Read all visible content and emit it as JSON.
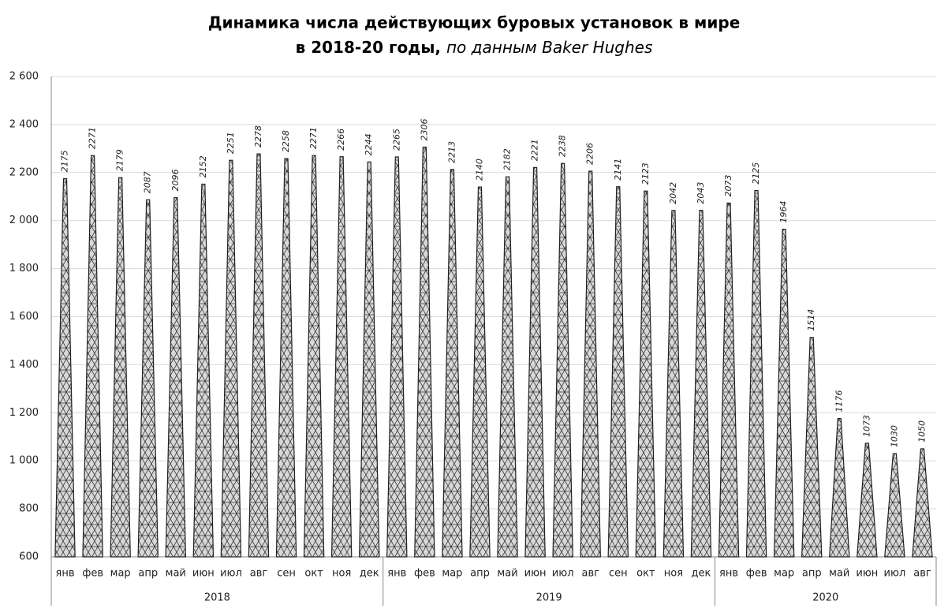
{
  "chart_data": {
    "type": "bar",
    "title": "Динамика числа действующих буровых установок в мире",
    "subtitle": "в 2018-20 годы,",
    "source": "по данным Baker Hughes",
    "ylim": [
      600,
      2600
    ],
    "yticks": [
      {
        "value": 600,
        "label": "600"
      },
      {
        "value": 800,
        "label": "800"
      },
      {
        "value": 1000,
        "label": "1 000"
      },
      {
        "value": 1200,
        "label": "1 200"
      },
      {
        "value": 1400,
        "label": "1 400"
      },
      {
        "value": 1600,
        "label": "1 600"
      },
      {
        "value": 1800,
        "label": "1 800"
      },
      {
        "value": 2000,
        "label": "2 000"
      },
      {
        "value": 2200,
        "label": "2 200"
      },
      {
        "value": 2400,
        "label": "2 400"
      },
      {
        "value": 2600,
        "label": "2 600"
      }
    ],
    "grid": true,
    "color": "#b0b0b0",
    "groups": [
      {
        "label": "2018",
        "categories": [
          "янв",
          "фев",
          "мар",
          "апр",
          "май",
          "июн",
          "июл",
          "авг",
          "сен",
          "окт",
          "ноя",
          "дек"
        ],
        "values": [
          2175,
          2271,
          2179,
          2087,
          2096,
          2152,
          2251,
          2278,
          2258,
          2271,
          2266,
          2244
        ]
      },
      {
        "label": "2019",
        "categories": [
          "янв",
          "фев",
          "мар",
          "апр",
          "май",
          "июн",
          "июл",
          "авг",
          "сен",
          "окт",
          "ноя",
          "дек"
        ],
        "values": [
          2265,
          2306,
          2213,
          2140,
          2182,
          2221,
          2238,
          2206,
          2141,
          2123,
          2042,
          2043
        ]
      },
      {
        "label": "2020",
        "categories": [
          "янв",
          "фев",
          "мар",
          "апр",
          "май",
          "июн",
          "июл",
          "авг"
        ],
        "values": [
          2073,
          2125,
          1964,
          1514,
          1176,
          1073,
          1030,
          1050
        ]
      }
    ]
  }
}
